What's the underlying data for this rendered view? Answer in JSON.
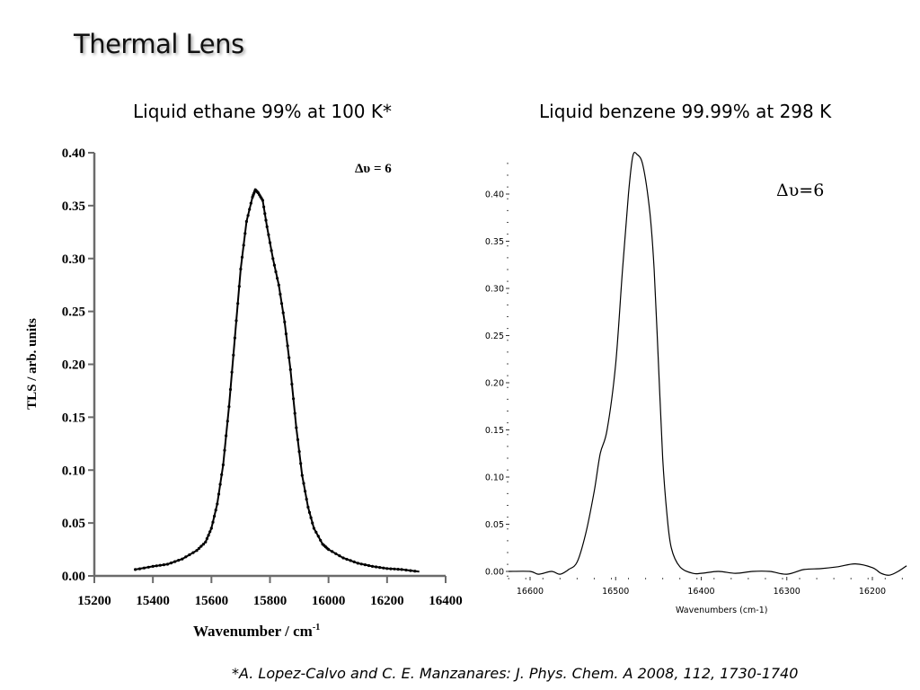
{
  "slide": {
    "title": "Thermal Lens",
    "left_subtitle": "Liquid ethane 99% at 100 K*",
    "right_subtitle": "Liquid benzene 99.99% at 298 K",
    "citation": "*A. Lopez-Calvo and C. E. Manzanares: J. Phys. Chem. A 2008, 112, 1730-1740"
  },
  "chart_data": [
    {
      "type": "line",
      "title": "Liquid ethane 99% at 100 K*",
      "annotation": "Δυ = 6",
      "xlabel": "Wavenumber / cm-1",
      "ylabel": "TLS / arb. units",
      "xlim": [
        15200,
        16400
      ],
      "ylim": [
        0.0,
        0.4
      ],
      "x_ticks": [
        "15200",
        "15400",
        "15600",
        "15800",
        "16000",
        "16200",
        "16400"
      ],
      "y_ticks": [
        "0.00",
        "0.05",
        "0.10",
        "0.15",
        "0.20",
        "0.25",
        "0.30",
        "0.35",
        "0.40"
      ],
      "markers": true,
      "grid": false,
      "x": [
        15340,
        15400,
        15450,
        15500,
        15550,
        15580,
        15600,
        15620,
        15640,
        15660,
        15680,
        15700,
        15720,
        15740,
        15750,
        15760,
        15775,
        15790,
        15810,
        15830,
        15850,
        15870,
        15890,
        15910,
        15930,
        15950,
        15980,
        16000,
        16050,
        16100,
        16150,
        16200,
        16250,
        16310
      ],
      "values": [
        0.006,
        0.009,
        0.011,
        0.016,
        0.024,
        0.032,
        0.045,
        0.068,
        0.105,
        0.16,
        0.225,
        0.29,
        0.335,
        0.358,
        0.365,
        0.362,
        0.355,
        0.33,
        0.3,
        0.275,
        0.24,
        0.195,
        0.14,
        0.095,
        0.065,
        0.045,
        0.03,
        0.025,
        0.017,
        0.012,
        0.009,
        0.007,
        0.006,
        0.004
      ]
    },
    {
      "type": "line",
      "title": "Liquid benzene 99.99% at 298 K",
      "annotation": "Δυ=6",
      "xlabel": "Wavenumbers (cm-1)",
      "ylabel": "",
      "xlim": [
        16625,
        16160
      ],
      "x_reversed": true,
      "ylim": [
        0.0,
        0.44
      ],
      "x_ticks": [
        "16600",
        "16500",
        "16400",
        "16300",
        "16200"
      ],
      "y_ticks": [
        "0.00",
        "0.05",
        "0.10",
        "0.15",
        "0.20",
        "0.25",
        "0.30",
        "0.35",
        "0.40"
      ],
      "markers": false,
      "grid": false,
      "x": [
        16625,
        16600,
        16590,
        16575,
        16565,
        16555,
        16545,
        16535,
        16525,
        16518,
        16510,
        16500,
        16492,
        16485,
        16480,
        16475,
        16468,
        16460,
        16455,
        16450,
        16445,
        16440,
        16435,
        16425,
        16410,
        16400,
        16380,
        16360,
        16340,
        16320,
        16300,
        16280,
        16260,
        16240,
        16220,
        16200,
        16190,
        16180,
        16170,
        16160
      ],
      "values": [
        0.0,
        0.0,
        -0.003,
        0.0,
        -0.003,
        0.002,
        0.01,
        0.04,
        0.085,
        0.125,
        0.15,
        0.22,
        0.32,
        0.4,
        0.44,
        0.442,
        0.43,
        0.38,
        0.32,
        0.22,
        0.12,
        0.06,
        0.025,
        0.005,
        -0.002,
        -0.002,
        0.0,
        -0.002,
        0.0,
        0.0,
        -0.003,
        0.002,
        0.003,
        0.005,
        0.008,
        0.004,
        -0.002,
        -0.004,
        0.0,
        0.006
      ]
    }
  ]
}
